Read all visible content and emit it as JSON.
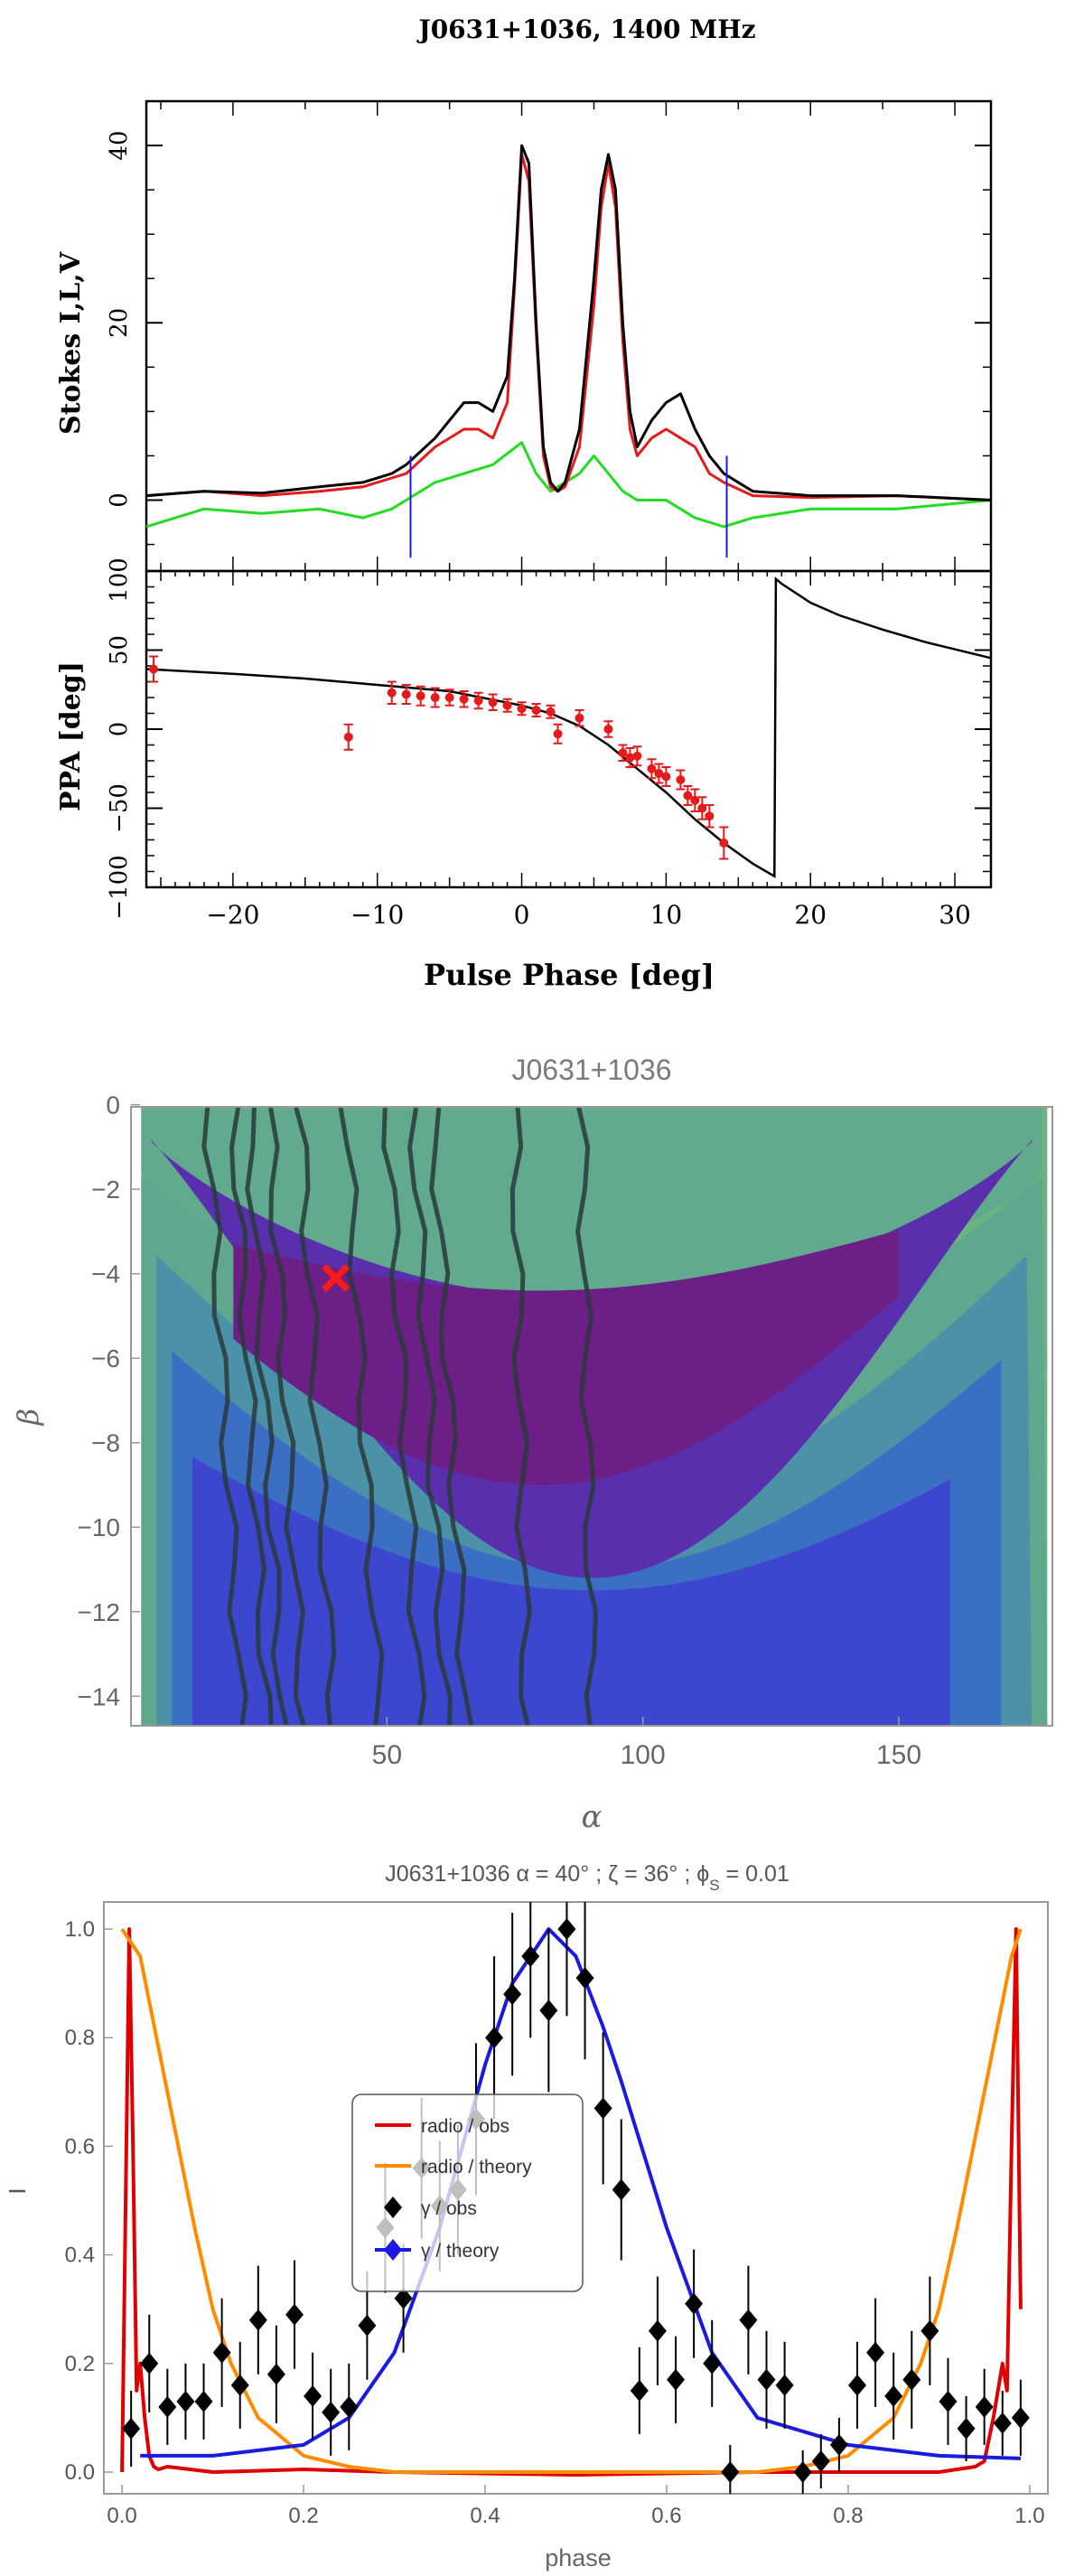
{
  "chart_data": [
    {
      "panel": "top-profile",
      "type": "line",
      "title": "J0631+1036, 1400 MHz",
      "ylabel": "Stokes I,L,V",
      "xlim": [
        -26,
        32.5
      ],
      "ylim": [
        -8,
        45
      ],
      "yticks": [
        0,
        20,
        40
      ],
      "y_top_label": "100",
      "series": [
        {
          "key": "I",
          "color": "#000000",
          "x": [
            -26,
            -22,
            -18,
            -14,
            -11,
            -9,
            -8,
            -6,
            -4,
            -3,
            -2,
            -1,
            -0.5,
            0,
            0.5,
            1,
            1.5,
            2,
            2.5,
            3,
            4,
            5,
            5.5,
            6,
            6.5,
            7,
            7.5,
            8,
            9,
            10,
            11,
            12,
            13,
            14,
            16,
            20,
            26,
            32.5
          ],
          "y": [
            0.5,
            1,
            0.8,
            1.5,
            2,
            3,
            4,
            7,
            11,
            11,
            10,
            14,
            25,
            40,
            38,
            20,
            6,
            2,
            1,
            2,
            8,
            25,
            35,
            39,
            35,
            20,
            10,
            6,
            9,
            11,
            12,
            8,
            5,
            3,
            1,
            0.5,
            0.5,
            0
          ]
        },
        {
          "key": "L",
          "color": "#e41a1c",
          "x": [
            -26,
            -22,
            -18,
            -14,
            -11,
            -9,
            -8,
            -6,
            -4,
            -3,
            -2,
            -1,
            -0.5,
            0,
            0.5,
            1,
            1.5,
            2,
            2.5,
            3,
            4,
            5,
            5.5,
            6,
            6.5,
            7,
            7.5,
            8,
            9,
            10,
            11,
            12,
            13,
            14,
            16,
            20,
            26,
            32.5
          ],
          "y": [
            0.5,
            1,
            0.5,
            1,
            1.5,
            2.5,
            3,
            6,
            8,
            8,
            7,
            11,
            24,
            39,
            36,
            19,
            5,
            1.5,
            1,
            1.5,
            6,
            22,
            33,
            38,
            33,
            18,
            8,
            5,
            7,
            8,
            7,
            6,
            3,
            2,
            0.5,
            0.3,
            0.5,
            0
          ]
        },
        {
          "key": "V",
          "color": "#22dd22",
          "x": [
            -26,
            -22,
            -18,
            -14,
            -11,
            -9,
            -8,
            -6,
            -4,
            -2,
            0,
            1,
            2,
            3,
            4,
            5,
            6,
            7,
            8,
            10,
            12,
            14,
            16,
            20,
            26,
            32.5
          ],
          "y": [
            -3,
            -1,
            -1.5,
            -1,
            -2,
            -1,
            0,
            2,
            3,
            4,
            6.5,
            3,
            1,
            2,
            3,
            5,
            3,
            1,
            0,
            0,
            -2,
            -3,
            -2,
            -1,
            -1,
            0
          ]
        }
      ],
      "markers_x": [
        -7.7,
        14.2
      ]
    },
    {
      "panel": "top-ppa",
      "type": "scatter",
      "xlabel": "Pulse Phase [deg]",
      "ylabel": "PPA [deg]",
      "xlim": [
        -26,
        32.5
      ],
      "ylim": [
        -100,
        100
      ],
      "xticks": [
        -20,
        -10,
        0,
        10,
        20,
        30
      ],
      "yticks": [
        -100,
        -50,
        0,
        50
      ],
      "model": {
        "x": [
          -26,
          -20,
          -15,
          -10,
          -5,
          0,
          2,
          4,
          6,
          8,
          10,
          12,
          14,
          16,
          17.5,
          17.6,
          18,
          20,
          22,
          25,
          28,
          32.5
        ],
        "y": [
          38,
          35,
          32,
          28,
          24,
          15,
          10,
          2,
          -10,
          -25,
          -40,
          -57,
          -72,
          -85,
          -93,
          95,
          92,
          80,
          72,
          63,
          55,
          45
        ]
      },
      "points": {
        "x": [
          -25.5,
          -12,
          -9,
          -8,
          -7,
          -6,
          -5,
          -4,
          -3,
          -2,
          -1,
          0,
          1,
          2,
          2.5,
          4,
          6,
          7,
          7.5,
          8,
          9,
          9.5,
          10,
          11,
          11.5,
          12,
          12.5,
          13,
          14
        ],
        "y": [
          38,
          -5,
          23,
          22,
          21,
          20,
          20,
          19,
          18,
          17,
          15,
          13,
          12,
          11,
          -3,
          7,
          0,
          -15,
          -18,
          -17,
          -25,
          -28,
          -30,
          -32,
          -42,
          -45,
          -50,
          -55,
          -72
        ],
        "err": [
          8,
          8,
          7,
          6,
          6,
          6,
          5,
          5,
          5,
          5,
          4,
          4,
          4,
          4,
          6,
          5,
          5,
          5,
          6,
          6,
          6,
          6,
          6,
          6,
          6,
          7,
          7,
          7,
          10
        ]
      }
    },
    {
      "panel": "middle-map",
      "type": "heatmap",
      "title": "J0631+1036",
      "xlabel": "α",
      "ylabel": "β",
      "xlim": [
        0,
        180
      ],
      "ylim": [
        -15,
        0
      ],
      "xticks": [
        50,
        100,
        150
      ],
      "yticks": [
        0,
        -2,
        -4,
        -6,
        -8,
        -10,
        -12,
        -14
      ],
      "best_fit": {
        "alpha": 40,
        "beta": -4.1
      },
      "contours_alpha": [
        15,
        20,
        23,
        27,
        33,
        42,
        50,
        55,
        59,
        75,
        88
      ],
      "colors": [
        "#6db382",
        "#5fa88f",
        "#4b91a8",
        "#3a6fc4",
        "#3c46cf",
        "#5a2fae",
        "#6c1f87"
      ]
    },
    {
      "panel": "bottom-lightcurve",
      "type": "line",
      "title": "J0631+1036 α = 40° ; ζ = 36° ; ϕ",
      "title_sub": "S",
      "title_end": " = 0.01",
      "xlabel": "phase",
      "ylabel": "I",
      "xlim": [
        -0.02,
        1.02
      ],
      "ylim": [
        -0.04,
        1.05
      ],
      "xticks": [
        0.0,
        0.2,
        0.4,
        0.6,
        0.8,
        1.0
      ],
      "yticks": [
        0.0,
        0.2,
        0.4,
        0.6,
        0.8,
        1.0
      ],
      "legend": [
        "radio / obs",
        "radio / theory",
        "γ / obs",
        "γ / theory"
      ],
      "series": [
        {
          "name": "radio / obs",
          "color": "#e00000",
          "x": [
            0,
            0.004,
            0.008,
            0.012,
            0.016,
            0.02,
            0.025,
            0.03,
            0.035,
            0.04,
            0.05,
            0.1,
            0.2,
            0.3,
            0.5,
            0.7,
            0.9,
            0.94,
            0.95,
            0.96,
            0.97,
            0.975,
            0.98,
            0.985,
            0.99
          ],
          "y": [
            0,
            0.5,
            1.0,
            0.6,
            0.15,
            0.2,
            0.1,
            0.03,
            0.01,
            0.005,
            0.01,
            0,
            0.005,
            0,
            -0.005,
            0,
            0,
            0.01,
            0.02,
            0.1,
            0.2,
            0.15,
            0.6,
            1.0,
            0.3
          ]
        },
        {
          "name": "radio / theory",
          "color": "#ff8c00",
          "x": [
            0,
            0.02,
            0.05,
            0.08,
            0.1,
            0.12,
            0.15,
            0.2,
            0.25,
            0.3,
            0.5,
            0.7,
            0.75,
            0.8,
            0.85,
            0.88,
            0.9,
            0.92,
            0.95,
            0.98,
            0.99
          ],
          "y": [
            1.0,
            0.95,
            0.7,
            0.45,
            0.3,
            0.2,
            0.1,
            0.03,
            0.01,
            0,
            0,
            0,
            0.01,
            0.03,
            0.1,
            0.2,
            0.3,
            0.45,
            0.7,
            0.95,
            1.0
          ]
        },
        {
          "name": "γ / theory",
          "color": "#1a1ae0",
          "x": [
            0.02,
            0.1,
            0.2,
            0.25,
            0.3,
            0.35,
            0.4,
            0.43,
            0.47,
            0.5,
            0.53,
            0.55,
            0.6,
            0.65,
            0.7,
            0.8,
            0.9,
            0.99
          ],
          "y": [
            0.03,
            0.03,
            0.05,
            0.1,
            0.22,
            0.45,
            0.75,
            0.9,
            1.0,
            0.95,
            0.82,
            0.72,
            0.45,
            0.22,
            0.1,
            0.05,
            0.03,
            0.025
          ]
        }
      ],
      "points": {
        "name": "γ / obs",
        "x": [
          0.01,
          0.03,
          0.05,
          0.07,
          0.09,
          0.11,
          0.13,
          0.15,
          0.17,
          0.19,
          0.21,
          0.23,
          0.25,
          0.27,
          0.29,
          0.31,
          0.33,
          0.35,
          0.37,
          0.39,
          0.41,
          0.43,
          0.45,
          0.47,
          0.49,
          0.51,
          0.53,
          0.55,
          0.57,
          0.59,
          0.61,
          0.63,
          0.65,
          0.67,
          0.69,
          0.71,
          0.73,
          0.75,
          0.77,
          0.79,
          0.81,
          0.83,
          0.85,
          0.87,
          0.89,
          0.91,
          0.93,
          0.95,
          0.97,
          0.99
        ],
        "y": [
          0.08,
          0.2,
          0.12,
          0.13,
          0.13,
          0.22,
          0.16,
          0.28,
          0.18,
          0.29,
          0.14,
          0.11,
          0.12,
          0.27,
          0.45,
          0.32,
          0.56,
          0.49,
          0.52,
          0.65,
          0.8,
          0.88,
          0.95,
          0.85,
          1.0,
          0.91,
          0.67,
          0.52,
          0.15,
          0.26,
          0.17,
          0.31,
          0.2,
          0.0,
          0.28,
          0.17,
          0.16,
          0.0,
          0.02,
          0.05,
          0.16,
          0.22,
          0.14,
          0.17,
          0.26,
          0.13,
          0.08,
          0.12,
          0.09,
          0.1
        ],
        "err": [
          0.07,
          0.09,
          0.07,
          0.07,
          0.07,
          0.1,
          0.08,
          0.1,
          0.09,
          0.1,
          0.08,
          0.08,
          0.08,
          0.1,
          0.12,
          0.1,
          0.13,
          0.12,
          0.12,
          0.14,
          0.15,
          0.15,
          0.15,
          0.15,
          0.16,
          0.15,
          0.14,
          0.13,
          0.08,
          0.1,
          0.08,
          0.1,
          0.08,
          0.05,
          0.1,
          0.09,
          0.08,
          0.04,
          0.05,
          0.05,
          0.08,
          0.1,
          0.08,
          0.09,
          0.1,
          0.08,
          0.06,
          0.07,
          0.06,
          0.07
        ]
      }
    }
  ]
}
